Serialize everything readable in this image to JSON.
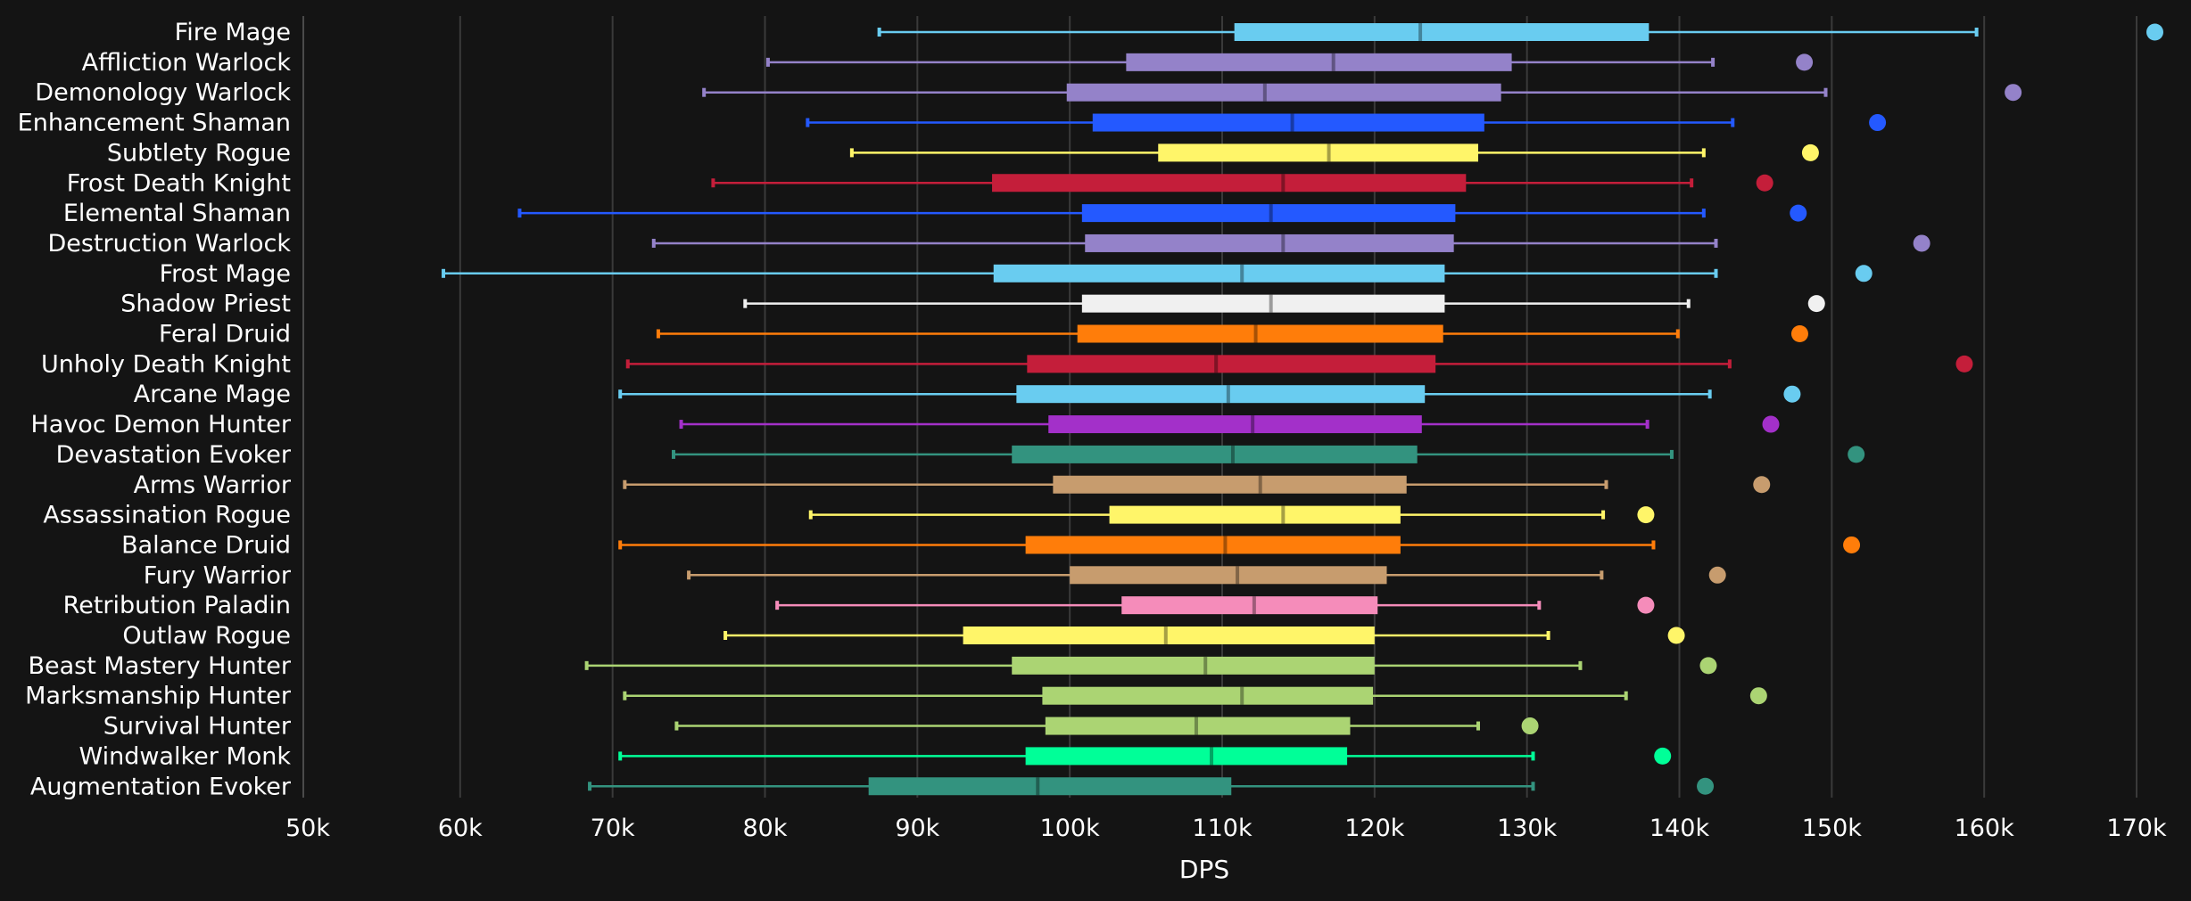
{
  "chart_data": {
    "type": "box",
    "orientation": "horizontal",
    "title": "",
    "xlabel": "DPS",
    "ylabel": "",
    "xlim": [
      50000,
      170000
    ],
    "x_ticks": [
      50000,
      60000,
      70000,
      80000,
      90000,
      100000,
      110000,
      120000,
      130000,
      140000,
      150000,
      160000,
      170000
    ],
    "x_tick_labels": [
      "50k",
      "60k",
      "70k",
      "80k",
      "90k",
      "100k",
      "110k",
      "120k",
      "130k",
      "140k",
      "150k",
      "160k",
      "170k"
    ],
    "grid": true,
    "legend": "none",
    "series": [
      {
        "name": "Fire Mage",
        "color": "#69ccf0",
        "min": 87500,
        "q1": 110800,
        "median": 123000,
        "q3": 138000,
        "max": 159500,
        "outlier": 171200
      },
      {
        "name": "Affliction Warlock",
        "color": "#9482c9",
        "min": 80200,
        "q1": 103700,
        "median": 117300,
        "q3": 129000,
        "max": 142200,
        "outlier": 148200
      },
      {
        "name": "Demonology Warlock",
        "color": "#9482c9",
        "min": 76000,
        "q1": 99800,
        "median": 112800,
        "q3": 128300,
        "max": 149600,
        "outlier": 161900
      },
      {
        "name": "Enhancement Shaman",
        "color": "#2459ff",
        "min": 82800,
        "q1": 101500,
        "median": 114600,
        "q3": 127200,
        "max": 143500,
        "outlier": 153000
      },
      {
        "name": "Subtlety Rogue",
        "color": "#fff569",
        "min": 85700,
        "q1": 105800,
        "median": 117000,
        "q3": 126800,
        "max": 141600,
        "outlier": 148600
      },
      {
        "name": "Frost Death Knight",
        "color": "#c41e3a",
        "min": 76600,
        "q1": 94900,
        "median": 114000,
        "q3": 126000,
        "max": 140800,
        "outlier": 145600
      },
      {
        "name": "Elemental Shaman",
        "color": "#2459ff",
        "min": 63900,
        "q1": 100800,
        "median": 113200,
        "q3": 125300,
        "max": 141600,
        "outlier": 147800
      },
      {
        "name": "Destruction Warlock",
        "color": "#9482c9",
        "min": 72700,
        "q1": 101000,
        "median": 114000,
        "q3": 125200,
        "max": 142400,
        "outlier": 155900
      },
      {
        "name": "Frost Mage",
        "color": "#69ccf0",
        "min": 58900,
        "q1": 95000,
        "median": 111300,
        "q3": 124600,
        "max": 142400,
        "outlier": 152100
      },
      {
        "name": "Shadow Priest",
        "color": "#f0f0f0",
        "min": 78700,
        "q1": 100800,
        "median": 113200,
        "q3": 124600,
        "max": 140600,
        "outlier": 149000
      },
      {
        "name": "Feral Druid",
        "color": "#ff7d0a",
        "min": 73000,
        "q1": 100500,
        "median": 112200,
        "q3": 124500,
        "max": 139900,
        "outlier": 147900
      },
      {
        "name": "Unholy Death Knight",
        "color": "#c41e3a",
        "min": 71000,
        "q1": 97200,
        "median": 109600,
        "q3": 124000,
        "max": 143300,
        "outlier": 158700
      },
      {
        "name": "Arcane Mage",
        "color": "#69ccf0",
        "min": 70500,
        "q1": 96500,
        "median": 110400,
        "q3": 123300,
        "max": 142000,
        "outlier": 147400
      },
      {
        "name": "Havoc Demon Hunter",
        "color": "#a330c9",
        "min": 74500,
        "q1": 98600,
        "median": 112000,
        "q3": 123100,
        "max": 137900,
        "outlier": 146000
      },
      {
        "name": "Devastation Evoker",
        "color": "#33937f",
        "min": 74000,
        "q1": 96200,
        "median": 110700,
        "q3": 122800,
        "max": 139500,
        "outlier": 151600
      },
      {
        "name": "Arms Warrior",
        "color": "#c79c6e",
        "min": 70800,
        "q1": 98900,
        "median": 112500,
        "q3": 122100,
        "max": 135200,
        "outlier": 145400
      },
      {
        "name": "Assassination Rogue",
        "color": "#fff569",
        "min": 83000,
        "q1": 102600,
        "median": 114000,
        "q3": 121700,
        "max": 135000,
        "outlier": 137800
      },
      {
        "name": "Balance Druid",
        "color": "#ff7d0a",
        "min": 70500,
        "q1": 97100,
        "median": 110200,
        "q3": 121700,
        "max": 138300,
        "outlier": 151300
      },
      {
        "name": "Fury Warrior",
        "color": "#c79c6e",
        "min": 75000,
        "q1": 100000,
        "median": 111000,
        "q3": 120800,
        "max": 134900,
        "outlier": 142500
      },
      {
        "name": "Retribution Paladin",
        "color": "#f58cba",
        "min": 80800,
        "q1": 103400,
        "median": 112100,
        "q3": 120200,
        "max": 130800,
        "outlier": 137800
      },
      {
        "name": "Outlaw Rogue",
        "color": "#fff569",
        "min": 77400,
        "q1": 93000,
        "median": 106300,
        "q3": 120000,
        "max": 131400,
        "outlier": 139800
      },
      {
        "name": "Beast Mastery Hunter",
        "color": "#abd473",
        "min": 68300,
        "q1": 96200,
        "median": 108900,
        "q3": 120000,
        "max": 133500,
        "outlier": 141900
      },
      {
        "name": "Marksmanship Hunter",
        "color": "#abd473",
        "min": 70800,
        "q1": 98200,
        "median": 111300,
        "q3": 119900,
        "max": 136500,
        "outlier": 145200
      },
      {
        "name": "Survival Hunter",
        "color": "#abd473",
        "min": 74200,
        "q1": 98400,
        "median": 108300,
        "q3": 118400,
        "max": 126800,
        "outlier": 130200
      },
      {
        "name": "Windwalker Monk",
        "color": "#00ff98",
        "min": 70500,
        "q1": 97100,
        "median": 109300,
        "q3": 118200,
        "max": 130400,
        "outlier": 138900
      },
      {
        "name": "Augmentation Evoker",
        "color": "#33937f",
        "min": 68500,
        "q1": 86800,
        "median": 97900,
        "q3": 110600,
        "max": 130400,
        "outlier": 141700
      }
    ]
  }
}
